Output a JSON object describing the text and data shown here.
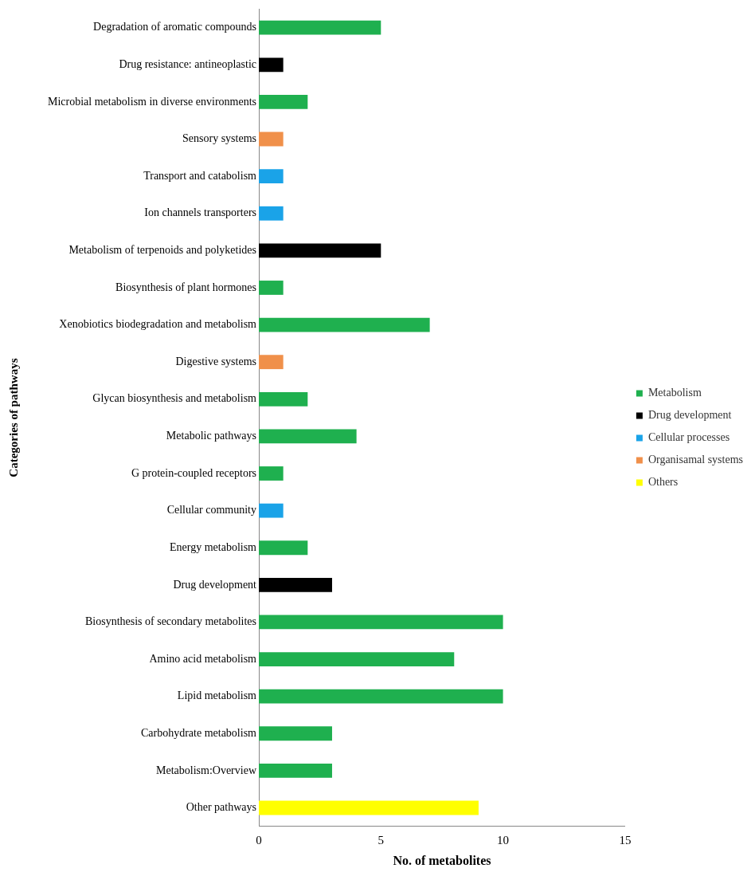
{
  "chart_data": {
    "type": "bar",
    "orientation": "horizontal",
    "stacked": true,
    "xlabel": "No. of metabolites",
    "ylabel": "Categories of pathways",
    "categories": [
      "Degradation of aromatic compounds",
      "Drug resistance: antineoplastic",
      "Microbial metabolism in diverse environments",
      "Sensory systems",
      "Transport and catabolism",
      "Ion channels transporters",
      "Metabolism of terpenoids and polyketides",
      "Biosynthesis of plant hormones",
      "Xenobiotics biodegradation and metabolism",
      "Digestive systems",
      "Glycan biosynthesis and metabolism",
      "Metabolic pathways",
      "G protein-coupled receptors",
      "Cellular community",
      "Energy metabolism",
      "Drug development",
      "Biosynthesis of secondary metabolites",
      "Amino acid metabolism",
      "Lipid metabolism",
      "Carbohydrate metabolism",
      "Metabolism:Overview",
      "Other pathways"
    ],
    "series": [
      {
        "name": "Metabolism",
        "color": "#1fb04f",
        "values": [
          5,
          null,
          2,
          null,
          null,
          null,
          null,
          1,
          7,
          null,
          2,
          4,
          1,
          null,
          2,
          null,
          10,
          8,
          10,
          3,
          3,
          null
        ]
      },
      {
        "name": "Drug development",
        "color": "#000000",
        "values": [
          null,
          1,
          null,
          null,
          null,
          null,
          5,
          null,
          null,
          null,
          null,
          null,
          null,
          null,
          null,
          3,
          null,
          null,
          null,
          null,
          null,
          null
        ]
      },
      {
        "name": "Cellular processes",
        "color": "#1aa3e8",
        "values": [
          null,
          null,
          null,
          null,
          1,
          1,
          null,
          null,
          null,
          null,
          null,
          null,
          null,
          1,
          null,
          null,
          null,
          null,
          null,
          null,
          null,
          null
        ]
      },
      {
        "name": "Organisamal systems",
        "color": "#f0904a",
        "values": [
          null,
          null,
          null,
          1,
          null,
          null,
          null,
          null,
          null,
          1,
          null,
          null,
          null,
          null,
          null,
          null,
          null,
          null,
          null,
          null,
          null,
          null
        ]
      },
      {
        "name": "Others",
        "color": "#ffff00",
        "values": [
          null,
          null,
          null,
          null,
          null,
          null,
          null,
          null,
          null,
          null,
          null,
          null,
          null,
          null,
          null,
          null,
          null,
          null,
          null,
          null,
          null,
          9
        ]
      }
    ],
    "xlim": [
      0,
      15
    ],
    "xticks": [
      0,
      5,
      10,
      15
    ],
    "grid": false,
    "legend": "right"
  }
}
